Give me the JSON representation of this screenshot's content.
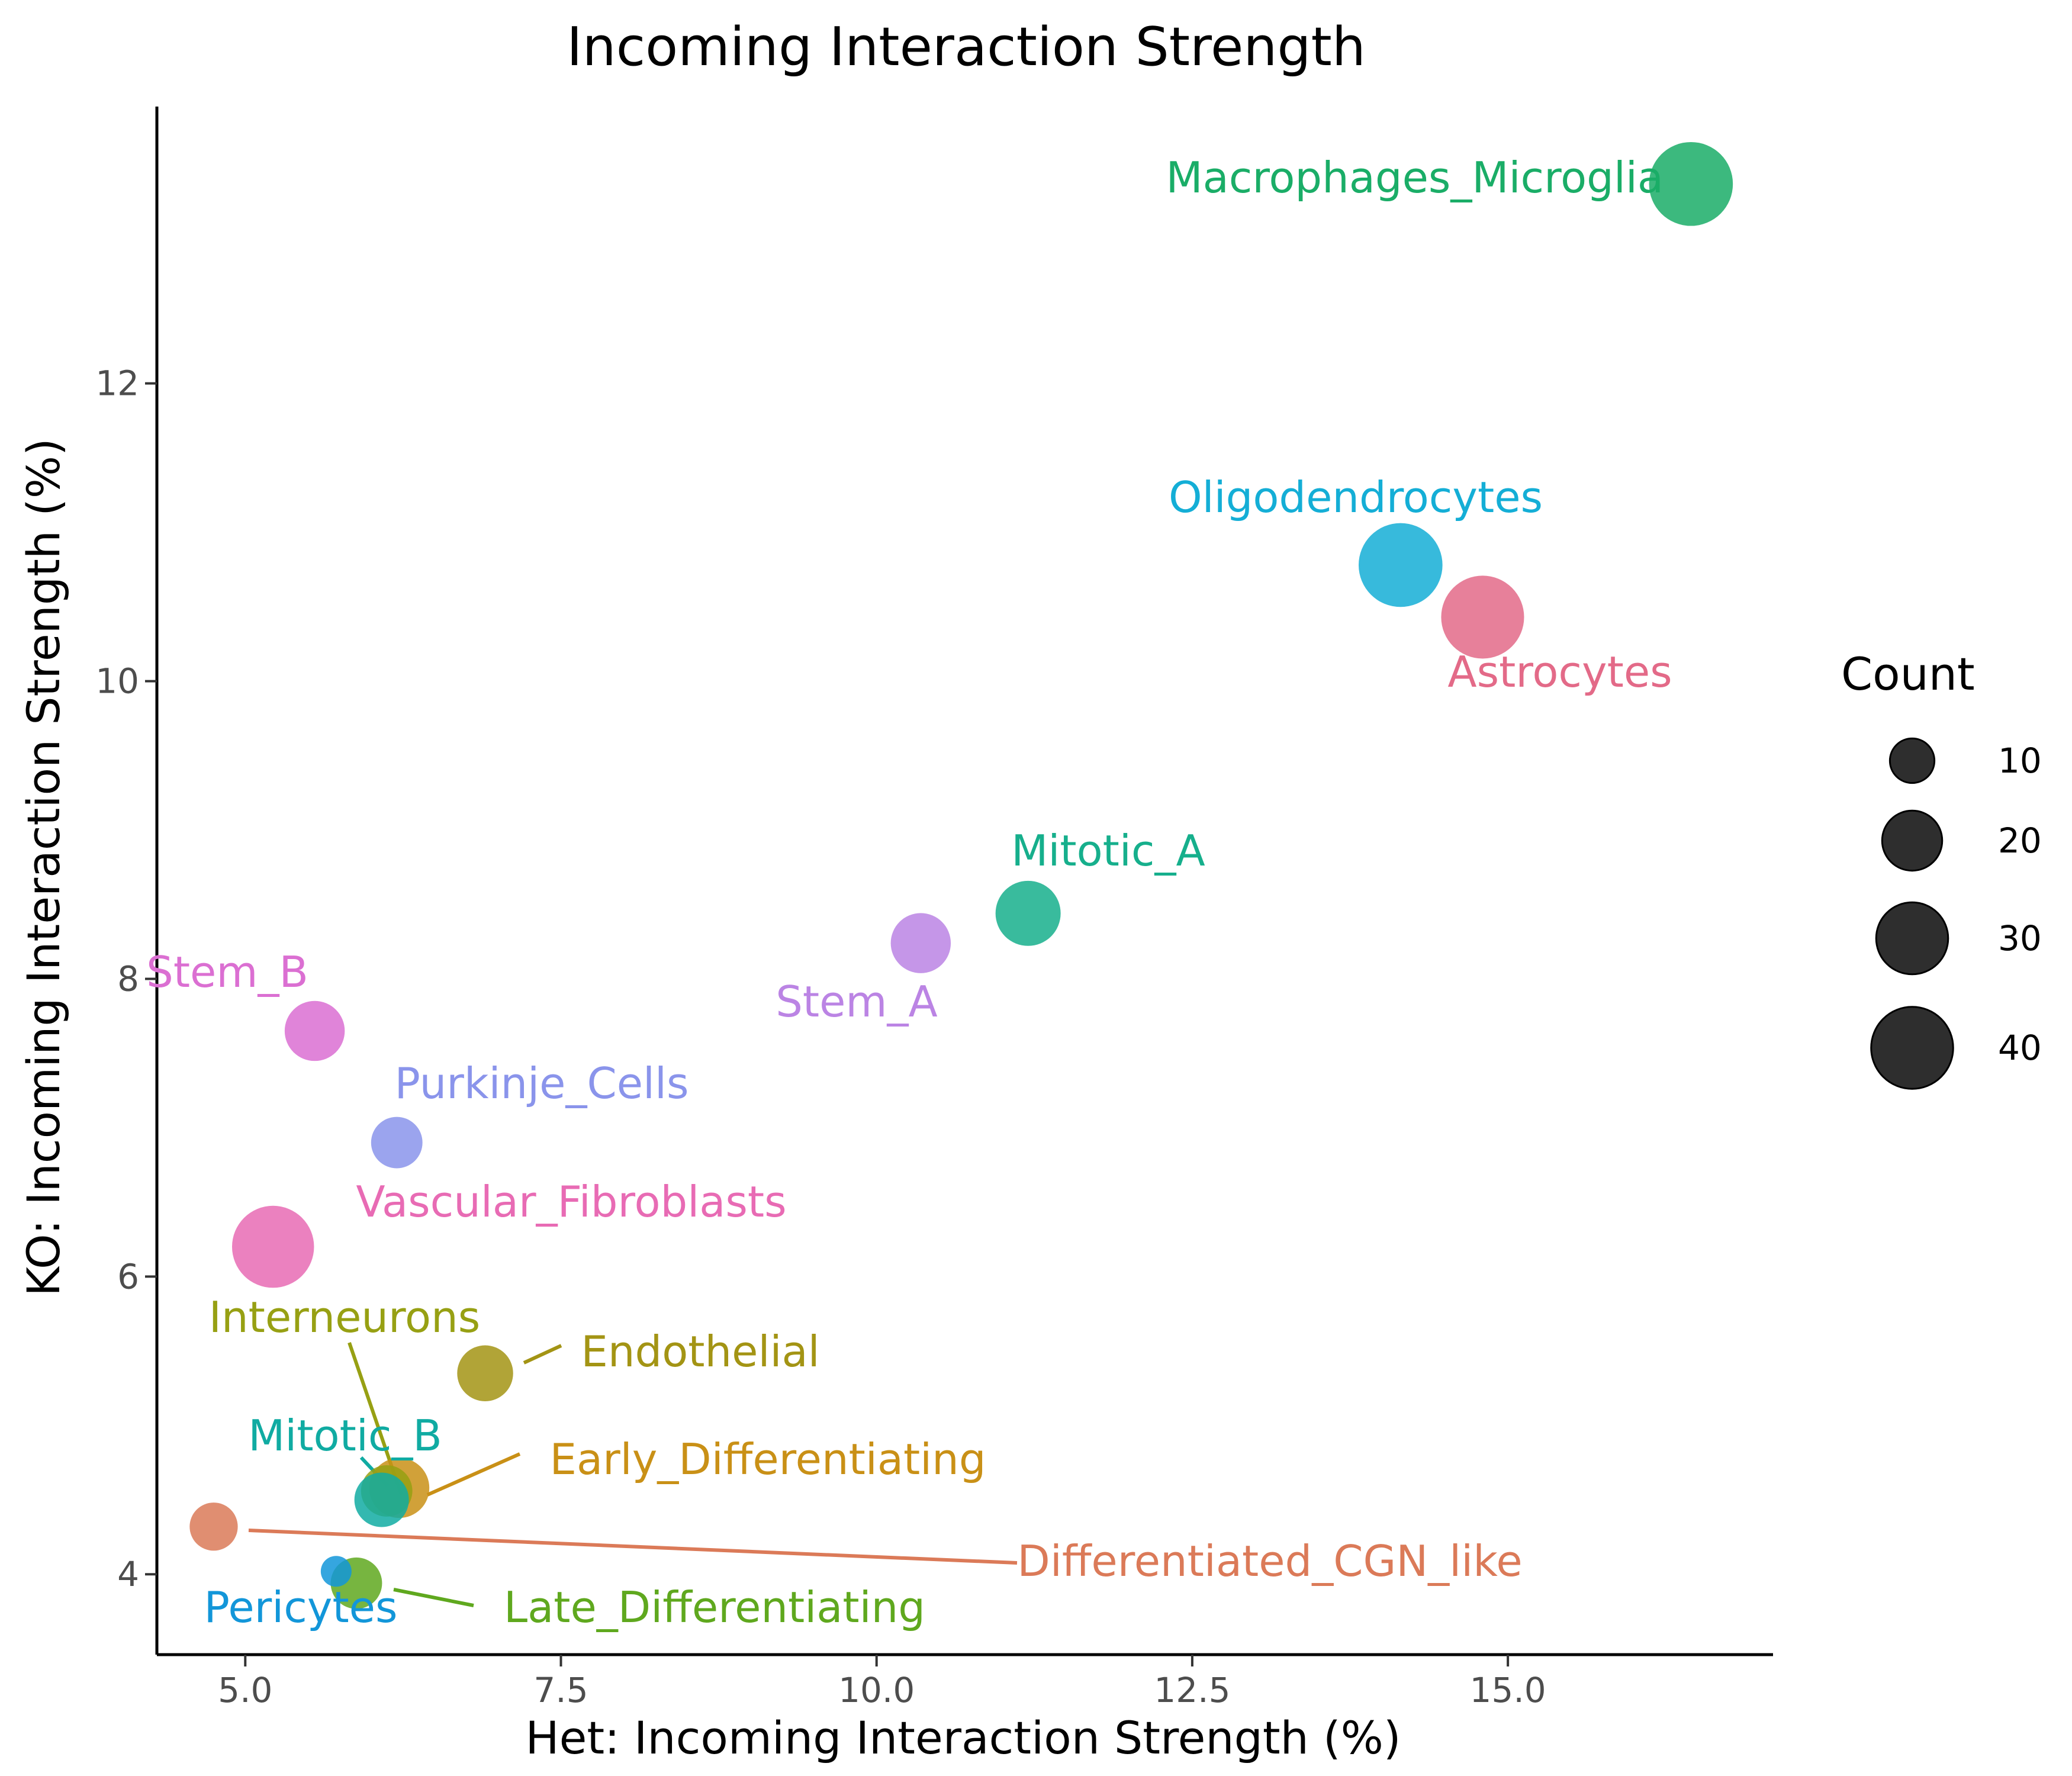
{
  "chart_data": {
    "type": "scatter",
    "title": "Incoming Interaction Strength",
    "xlabel": "Het: Incoming Interaction Strength (%)",
    "ylabel": "KO: Incoming Interaction Strength (%)",
    "xlim": [
      4.3,
      17.1
    ],
    "ylim": [
      3.46,
      13.86
    ],
    "xticks": [
      "5.0",
      "7.5",
      "10.0",
      "12.5",
      "15.0"
    ],
    "yticks": [
      "4",
      "6",
      "8",
      "10",
      "12"
    ],
    "grid": false,
    "legend": {
      "title": "Count",
      "position": "right",
      "sizes": [
        10,
        20,
        30,
        40
      ],
      "labels": [
        "10",
        "20",
        "30",
        "40"
      ]
    },
    "points": [
      {
        "label": "Macrophages_Microglia",
        "x": 16.45,
        "y": 13.34,
        "count": 42,
        "color": "#1aad67"
      },
      {
        "label": "Oligodendrocytes",
        "x": 14.15,
        "y": 10.78,
        "count": 42,
        "color": "#14aed6"
      },
      {
        "label": "Astrocytes",
        "x": 14.8,
        "y": 10.43,
        "count": 41,
        "color": "#e36a88"
      },
      {
        "label": "Mitotic_A",
        "x": 11.2,
        "y": 8.44,
        "count": 24,
        "color": "#16af8c"
      },
      {
        "label": "Stem_A",
        "x": 10.35,
        "y": 8.24,
        "count": 20,
        "color": "#bb84e4"
      },
      {
        "label": "Stem_B",
        "x": 5.55,
        "y": 7.65,
        "count": 20,
        "color": "#db6fd2"
      },
      {
        "label": "Purkinje_Cells",
        "x": 6.2,
        "y": 6.9,
        "count": 14,
        "color": "#8a94eb"
      },
      {
        "label": "Vascular_Fibroblasts",
        "x": 5.22,
        "y": 6.2,
        "count": 40,
        "color": "#e86bb4"
      },
      {
        "label": "Endothelial",
        "x": 6.9,
        "y": 5.35,
        "count": 17,
        "color": "#a39414"
      },
      {
        "label": "Early_Differentiating",
        "x": 6.22,
        "y": 4.58,
        "count": 20,
        "color": "#c99016"
      },
      {
        "label": "Interneurons",
        "x": 6.12,
        "y": 4.56,
        "count": 14,
        "color": "#97a013"
      },
      {
        "label": "Mitotic_B",
        "x": 6.08,
        "y": 4.5,
        "count": 16,
        "color": "#10aba2"
      },
      {
        "label": "Differentiated_CGN_like",
        "x": 4.75,
        "y": 4.32,
        "count": 12,
        "color": "#db7a58"
      },
      {
        "label": "Late_Differentiating",
        "x": 5.88,
        "y": 3.94,
        "count": 14,
        "color": "#5fa81e"
      },
      {
        "label": "Pericytes",
        "x": 5.72,
        "y": 4.02,
        "count": 4,
        "color": "#1296d9"
      }
    ]
  }
}
